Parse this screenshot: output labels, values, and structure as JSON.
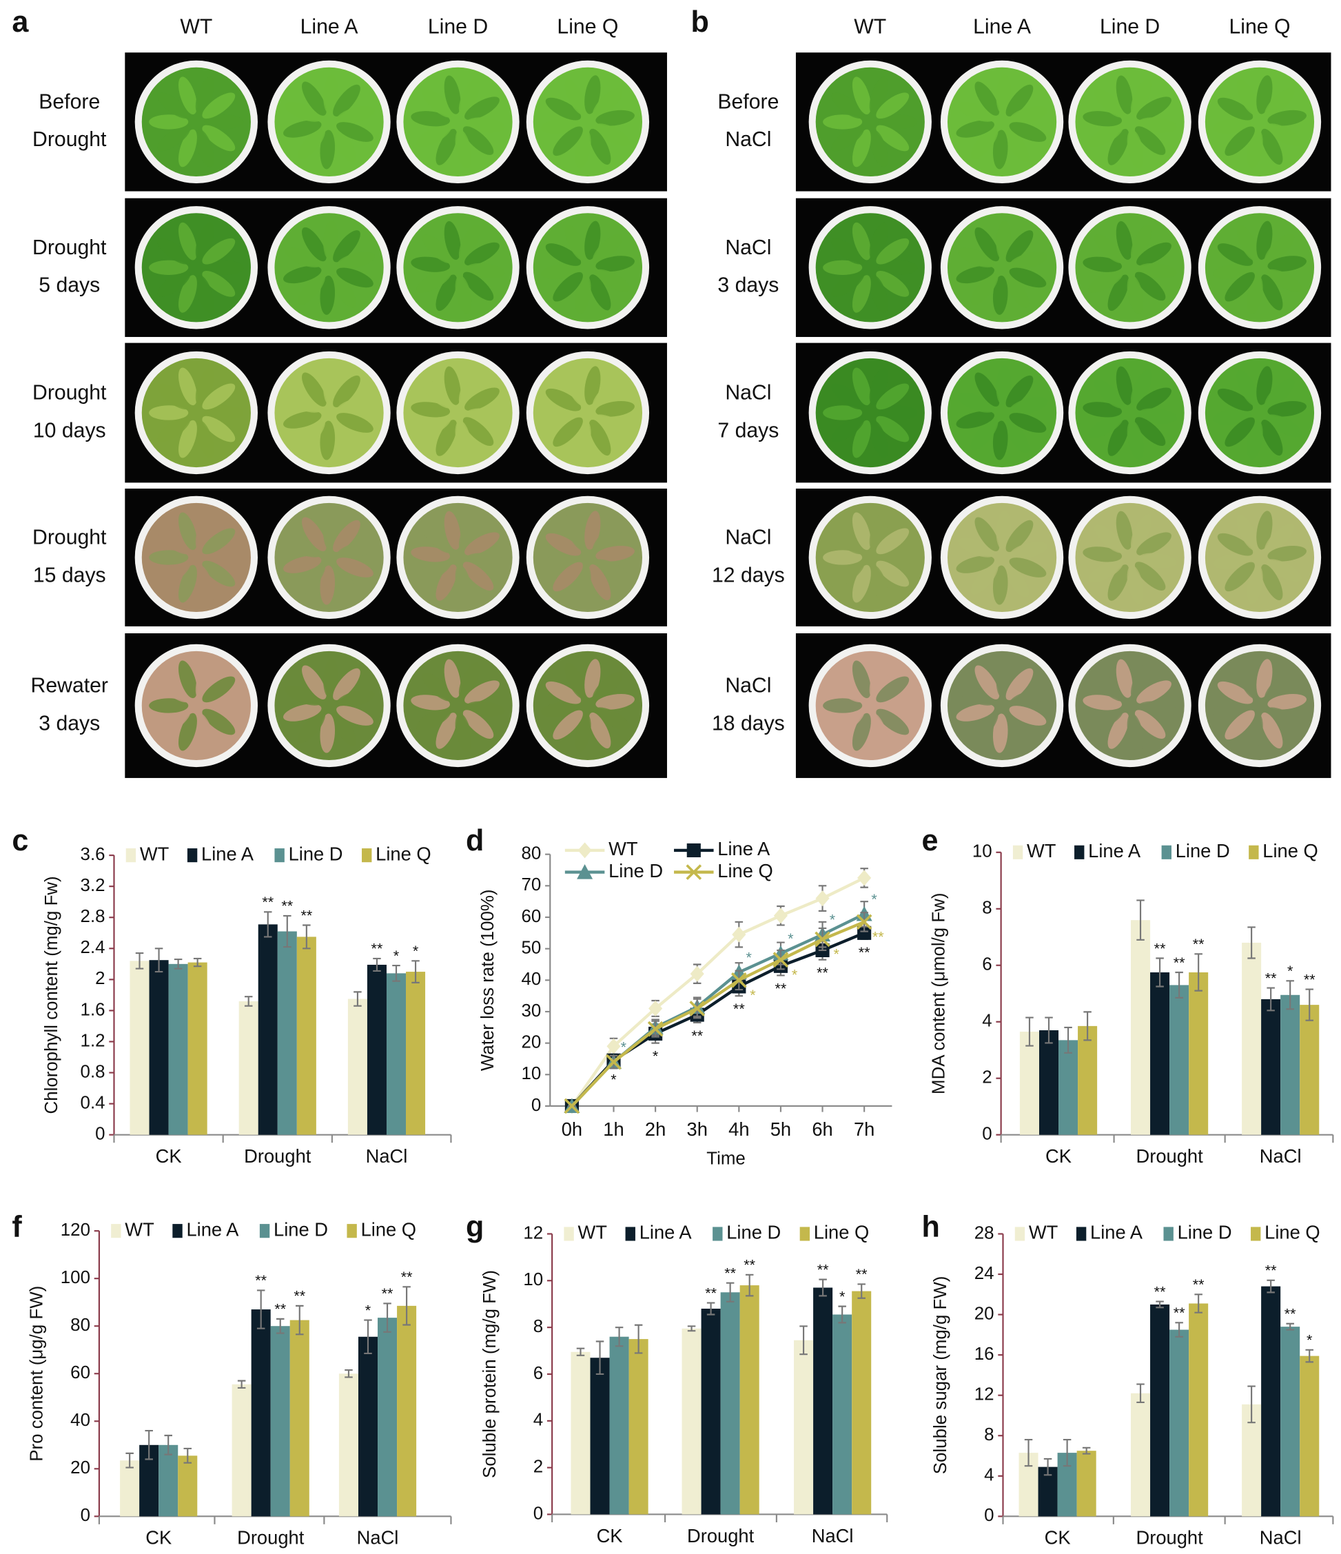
{
  "photo_panels": [
    {
      "panel": "a",
      "columns": [
        "WT",
        "Line A",
        "Line D",
        "Line Q"
      ],
      "rows": [
        [
          "Before",
          "Drought"
        ],
        [
          "Drought",
          "5 days"
        ],
        [
          "Drought",
          "10 days"
        ],
        [
          "Drought",
          "15 days"
        ],
        [
          "Rewater",
          "3 days"
        ]
      ]
    },
    {
      "panel": "b",
      "columns": [
        "WT",
        "Line A",
        "Line D",
        "Line Q"
      ],
      "rows": [
        [
          "Before",
          "NaCl"
        ],
        [
          "NaCl",
          "3 days"
        ],
        [
          "NaCl",
          "7 days"
        ],
        [
          "NaCl",
          "12 days"
        ],
        [
          "NaCl",
          "18 days"
        ]
      ]
    }
  ],
  "chart_data": [
    {
      "panel": "c",
      "type": "bar",
      "y_label": "Chlorophyll content  (mg/g Fw)",
      "categories": [
        "CK",
        "Drought",
        "NaCl"
      ],
      "ylim": [
        0,
        3.6
      ],
      "yticks": [
        0,
        0.4,
        0.8,
        1.2,
        1.6,
        2,
        2.4,
        2.8,
        3.2,
        3.6
      ],
      "series": [
        {
          "name": "WT",
          "color": "#f0eed2",
          "values": [
            2.24,
            1.72,
            1.75
          ],
          "errors": [
            0.1,
            0.06,
            0.09
          ],
          "stars": [
            null,
            null,
            null
          ]
        },
        {
          "name": "Line A",
          "color": "#0c1e2b",
          "values": [
            2.25,
            2.71,
            2.19
          ],
          "errors": [
            0.15,
            0.16,
            0.08
          ],
          "stars": [
            null,
            "**",
            "**"
          ]
        },
        {
          "name": "Line D",
          "color": "#5b9191",
          "values": [
            2.2,
            2.62,
            2.08
          ],
          "errors": [
            0.06,
            0.2,
            0.1
          ],
          "stars": [
            null,
            "**",
            "*"
          ]
        },
        {
          "name": "Line Q",
          "color": "#c4b84c",
          "values": [
            2.22,
            2.55,
            2.1
          ],
          "errors": [
            0.05,
            0.15,
            0.14
          ],
          "stars": [
            null,
            "**",
            "*"
          ]
        }
      ]
    },
    {
      "panel": "d",
      "type": "line",
      "y_label": "Water loss rate  (100%)",
      "x_label": "Time",
      "categories": [
        "0h",
        "1h",
        "2h",
        "3h",
        "4h",
        "5h",
        "6h",
        "7h"
      ],
      "ylim": [
        0,
        80
      ],
      "yticks": [
        0,
        10,
        20,
        30,
        40,
        50,
        60,
        70,
        80
      ],
      "series": [
        {
          "name": "WT",
          "color": "#eeebc6",
          "marker": "diamond",
          "values": [
            0,
            19,
            31,
            42,
            54.5,
            60.5,
            66,
            72.5
          ],
          "errors": [
            0,
            2.5,
            2.5,
            3,
            4,
            3,
            4,
            3
          ],
          "stars": [
            null,
            null,
            null,
            null,
            null,
            null,
            null,
            null
          ]
        },
        {
          "name": "Line A",
          "color": "#0c1e2b",
          "marker": "square",
          "values": [
            0,
            14.5,
            23,
            29,
            38,
            44.5,
            49.5,
            55
          ],
          "errors": [
            0,
            2,
            3,
            2.5,
            3,
            3,
            3,
            2
          ],
          "stars": [
            null,
            "*",
            "*",
            "**",
            "**",
            "**",
            "**",
            "**"
          ]
        },
        {
          "name": "Line D",
          "color": "#5b9191",
          "marker": "triangle",
          "values": [
            0,
            14,
            25,
            31.5,
            42.5,
            48.5,
            54.5,
            61
          ],
          "errors": [
            0,
            2,
            2.5,
            3,
            3,
            3.5,
            4,
            4
          ],
          "stars": [
            null,
            "*",
            null,
            null,
            "*",
            "*",
            "*",
            "*"
          ]
        },
        {
          "name": "Line Q",
          "color": "#c4b84c",
          "marker": "x",
          "values": [
            0,
            14,
            24.5,
            31,
            40,
            46.5,
            53,
            58.5
          ],
          "errors": [
            0,
            2,
            2.5,
            3,
            3,
            3,
            3.5,
            3
          ],
          "stars": [
            null,
            null,
            null,
            null,
            "*",
            "*",
            "*",
            "**"
          ]
        }
      ]
    },
    {
      "panel": "e",
      "type": "bar",
      "y_label": "MDA content  (μmol/g Fw)",
      "categories": [
        "CK",
        "Drought",
        "NaCl"
      ],
      "ylim": [
        0,
        10
      ],
      "yticks": [
        0,
        2,
        4,
        6,
        8,
        10
      ],
      "series": [
        {
          "name": "WT",
          "color": "#f0eed2",
          "values": [
            3.65,
            7.6,
            6.8
          ],
          "errors": [
            0.5,
            0.7,
            0.55
          ],
          "stars": [
            null,
            null,
            null
          ]
        },
        {
          "name": "Line A",
          "color": "#0c1e2b",
          "values": [
            3.7,
            5.75,
            4.8
          ],
          "errors": [
            0.45,
            0.5,
            0.4
          ],
          "stars": [
            null,
            "**",
            "**"
          ]
        },
        {
          "name": "Line D",
          "color": "#5b9191",
          "values": [
            3.35,
            5.3,
            4.95
          ],
          "errors": [
            0.45,
            0.45,
            0.5
          ],
          "stars": [
            null,
            "**",
            "*"
          ]
        },
        {
          "name": "Line Q",
          "color": "#c4b84c",
          "values": [
            3.85,
            5.75,
            4.6
          ],
          "errors": [
            0.5,
            0.65,
            0.55
          ],
          "stars": [
            null,
            "**",
            "**"
          ]
        }
      ]
    },
    {
      "panel": "f",
      "type": "bar",
      "y_label": "Pro content  (μg/g FW)",
      "categories": [
        "CK",
        "Drought",
        "NaCl"
      ],
      "ylim": [
        0,
        120
      ],
      "yticks": [
        0,
        20,
        40,
        60,
        80,
        100,
        120
      ],
      "series": [
        {
          "name": "WT",
          "color": "#f0eed2",
          "values": [
            23.5,
            55.5,
            60
          ],
          "errors": [
            3,
            1.5,
            1.5
          ],
          "stars": [
            null,
            null,
            null
          ]
        },
        {
          "name": "Line A",
          "color": "#0c1e2b",
          "values": [
            30,
            87,
            75.5
          ],
          "errors": [
            6,
            8,
            7
          ],
          "stars": [
            null,
            "**",
            "*"
          ]
        },
        {
          "name": "Line D",
          "color": "#5b9191",
          "values": [
            30,
            80,
            83.5
          ],
          "errors": [
            4,
            3,
            6
          ],
          "stars": [
            null,
            "**",
            "**"
          ]
        },
        {
          "name": "Line Q",
          "color": "#c4b84c",
          "values": [
            25.5,
            82.5,
            88.5
          ],
          "errors": [
            3,
            6,
            8
          ],
          "stars": [
            null,
            "**",
            "**"
          ]
        }
      ]
    },
    {
      "panel": "g",
      "type": "bar",
      "y_label": "Soluble protein  (mg/g FW)",
      "categories": [
        "CK",
        "Drought",
        "NaCl"
      ],
      "ylim": [
        0,
        12
      ],
      "yticks": [
        0,
        2,
        4,
        6,
        8,
        10,
        12
      ],
      "series": [
        {
          "name": "WT",
          "color": "#f0eed2",
          "values": [
            6.95,
            7.95,
            7.45
          ],
          "errors": [
            0.15,
            0.1,
            0.6
          ],
          "stars": [
            null,
            null,
            null
          ]
        },
        {
          "name": "Line A",
          "color": "#0c1e2b",
          "values": [
            6.7,
            8.8,
            9.7
          ],
          "errors": [
            0.7,
            0.25,
            0.35
          ],
          "stars": [
            null,
            "**",
            "**"
          ]
        },
        {
          "name": "Line D",
          "color": "#5b9191",
          "values": [
            7.6,
            9.5,
            8.55
          ],
          "errors": [
            0.4,
            0.4,
            0.35
          ],
          "stars": [
            null,
            "**",
            "*"
          ]
        },
        {
          "name": "Line Q",
          "color": "#c4b84c",
          "values": [
            7.5,
            9.8,
            9.55
          ],
          "errors": [
            0.6,
            0.45,
            0.3
          ],
          "stars": [
            null,
            "**",
            "**"
          ]
        }
      ]
    },
    {
      "panel": "h",
      "type": "bar",
      "y_label": "Soluble sugar  (mg/g FW)",
      "categories": [
        "CK",
        "Drought",
        "NaCl"
      ],
      "ylim": [
        0,
        28
      ],
      "yticks": [
        0,
        4,
        8,
        12,
        16,
        20,
        24,
        28
      ],
      "series": [
        {
          "name": "WT",
          "color": "#f0eed2",
          "values": [
            6.3,
            12.2,
            11.1
          ],
          "errors": [
            1.3,
            0.9,
            1.8
          ],
          "stars": [
            null,
            null,
            null
          ]
        },
        {
          "name": "Line A",
          "color": "#0c1e2b",
          "values": [
            4.9,
            21,
            22.8
          ],
          "errors": [
            0.8,
            0.3,
            0.6
          ],
          "stars": [
            null,
            "**",
            "**"
          ]
        },
        {
          "name": "Line D",
          "color": "#5b9191",
          "values": [
            6.3,
            18.5,
            18.8
          ],
          "errors": [
            1.3,
            0.7,
            0.3
          ],
          "stars": [
            null,
            "**",
            "**"
          ]
        },
        {
          "name": "Line Q",
          "color": "#c4b84c",
          "values": [
            6.5,
            21.1,
            15.9
          ],
          "errors": [
            0.3,
            0.9,
            0.6
          ],
          "stars": [
            null,
            "**",
            "*"
          ]
        }
      ]
    }
  ]
}
